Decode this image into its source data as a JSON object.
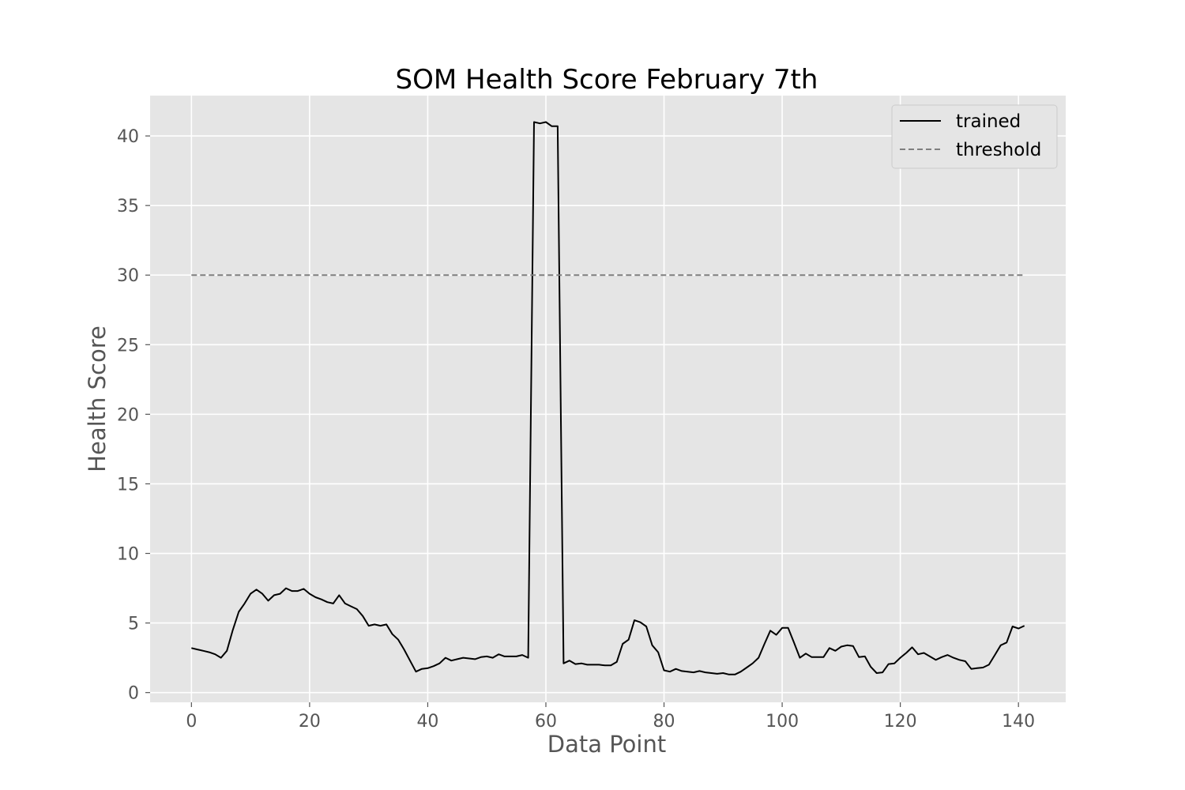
{
  "chart_data": {
    "type": "line",
    "title": "SOM Health Score February 7th",
    "xlabel": "Data Point",
    "ylabel": "Health Score",
    "xlim": [
      -7,
      148
    ],
    "ylim": [
      -0.7,
      42.9
    ],
    "xticks": [
      0,
      20,
      40,
      60,
      80,
      100,
      120,
      140
    ],
    "yticks": [
      0,
      5,
      10,
      15,
      20,
      25,
      30,
      35,
      40
    ],
    "grid": true,
    "legend_position": "top-right",
    "series": [
      {
        "name": "trained",
        "color": "#000000",
        "style": "solid",
        "x": [
          0,
          1,
          2,
          3,
          4,
          5,
          6,
          7,
          8,
          9,
          10,
          11,
          12,
          13,
          14,
          15,
          16,
          17,
          18,
          19,
          20,
          21,
          22,
          23,
          24,
          25,
          26,
          27,
          28,
          29,
          30,
          31,
          32,
          33,
          34,
          35,
          36,
          37,
          38,
          39,
          40,
          41,
          42,
          43,
          44,
          45,
          46,
          47,
          48,
          49,
          50,
          51,
          52,
          53,
          54,
          55,
          56,
          57,
          58,
          59,
          60,
          61,
          62,
          63,
          64,
          65,
          66,
          67,
          68,
          69,
          70,
          71,
          72,
          73,
          74,
          75,
          76,
          77,
          78,
          79,
          80,
          81,
          82,
          83,
          84,
          85,
          86,
          87,
          88,
          89,
          90,
          91,
          92,
          93,
          94,
          95,
          96,
          97,
          98,
          99,
          100,
          101,
          102,
          103,
          104,
          105,
          106,
          107,
          108,
          109,
          110,
          111,
          112,
          113,
          114,
          115,
          116,
          117,
          118,
          119,
          120,
          121,
          122,
          123,
          124,
          125,
          126,
          127,
          128,
          129,
          130,
          131,
          132,
          133,
          134,
          135,
          136,
          137,
          138,
          139,
          140,
          141
        ],
        "y": [
          3.2,
          3.1,
          3.0,
          2.9,
          2.75,
          2.5,
          3.0,
          4.5,
          5.8,
          6.4,
          7.1,
          7.4,
          7.1,
          6.6,
          7.0,
          7.1,
          7.5,
          7.3,
          7.3,
          7.45,
          7.1,
          6.85,
          6.7,
          6.5,
          6.4,
          7.0,
          6.4,
          6.2,
          6.0,
          5.5,
          4.8,
          4.9,
          4.8,
          4.9,
          4.2,
          3.8,
          3.1,
          2.3,
          1.5,
          1.7,
          1.75,
          1.9,
          2.1,
          2.5,
          2.3,
          2.4,
          2.5,
          2.45,
          2.4,
          2.55,
          2.6,
          2.5,
          2.75,
          2.6,
          2.6,
          2.6,
          2.7,
          2.5,
          41.0,
          40.9,
          41.0,
          40.7,
          40.7,
          2.1,
          2.3,
          2.05,
          2.1,
          2.0,
          2.0,
          2.0,
          1.95,
          1.95,
          2.2,
          3.5,
          3.8,
          5.2,
          5.05,
          4.75,
          3.4,
          2.9,
          1.6,
          1.5,
          1.7,
          1.55,
          1.5,
          1.45,
          1.55,
          1.45,
          1.4,
          1.35,
          1.4,
          1.3,
          1.3,
          1.5,
          1.8,
          2.1,
          2.5,
          3.5,
          4.45,
          4.15,
          4.65,
          4.65,
          3.6,
          2.5,
          2.8,
          2.55,
          2.55,
          2.55,
          3.2,
          3.0,
          3.3,
          3.4,
          3.35,
          2.55,
          2.6,
          1.85,
          1.4,
          1.45,
          2.05,
          2.1,
          2.5,
          2.85,
          3.25,
          2.75,
          2.85,
          2.6,
          2.35,
          2.55,
          2.7,
          2.5,
          2.35,
          2.25,
          1.7,
          1.75,
          1.8,
          2.0,
          2.7,
          3.4,
          3.6,
          4.75,
          4.6,
          4.8
        ]
      },
      {
        "name": "threshold",
        "color": "#7f7f7f",
        "style": "dashed",
        "x": [
          0,
          141
        ],
        "y": [
          30,
          30
        ]
      }
    ]
  }
}
